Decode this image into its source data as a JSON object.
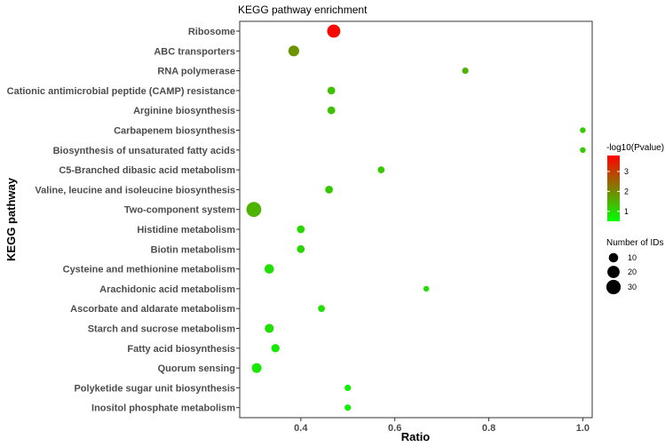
{
  "chart_data": {
    "type": "scatter",
    "title": "KEGG pathway enrichment",
    "xlabel": "Ratio",
    "ylabel": "KEGG pathway",
    "xlim": [
      0.27,
      1.02
    ],
    "xticks": [
      "0.4",
      "0.6",
      "0.8",
      "1.0"
    ],
    "xtick_values": [
      0.4,
      0.6,
      0.8,
      1.0
    ],
    "grid": false,
    "color_scale": {
      "low": "#00ff00",
      "high": "#ff0000",
      "min": 0.5,
      "max": 3.8
    },
    "legend": {
      "color_title": "-log10(Pvalue)",
      "color_ticks": [
        "1",
        "2",
        "3"
      ],
      "color_tick_values": [
        1,
        2,
        3
      ],
      "size_title": "Number of IDs",
      "size_ticks": [
        "10",
        "20",
        "30"
      ],
      "size_tick_values": [
        10,
        20,
        30
      ],
      "placement": "right"
    },
    "points": [
      {
        "pathway": "Ribosome",
        "ratio": 0.47,
        "count": 24,
        "neglog10p": 3.7
      },
      {
        "pathway": "ABC transporters",
        "ratio": 0.385,
        "count": 15,
        "neglog10p": 1.9
      },
      {
        "pathway": "RNA polymerase",
        "ratio": 0.75,
        "count": 3,
        "neglog10p": 1.5
      },
      {
        "pathway": "Cationic antimicrobial peptide (CAMP) resistance",
        "ratio": 0.465,
        "count": 6,
        "neglog10p": 1.3
      },
      {
        "pathway": "Arginine biosynthesis",
        "ratio": 0.465,
        "count": 6,
        "neglog10p": 1.3
      },
      {
        "pathway": "Carbapenem biosynthesis",
        "ratio": 1.0,
        "count": 2,
        "neglog10p": 1.2
      },
      {
        "pathway": "Biosynthesis of unsaturated fatty acids",
        "ratio": 1.0,
        "count": 2,
        "neglog10p": 1.2
      },
      {
        "pathway": "C5-Branched dibasic acid metabolism",
        "ratio": 0.571,
        "count": 4,
        "neglog10p": 1.2
      },
      {
        "pathway": "Valine, leucine and isoleucine biosynthesis",
        "ratio": 0.46,
        "count": 6,
        "neglog10p": 1.2
      },
      {
        "pathway": "Two-component system",
        "ratio": 0.3,
        "count": 33,
        "neglog10p": 1.5
      },
      {
        "pathway": "Histidine metabolism",
        "ratio": 0.4,
        "count": 6,
        "neglog10p": 1.0
      },
      {
        "pathway": "Biotin metabolism",
        "ratio": 0.4,
        "count": 6,
        "neglog10p": 1.0
      },
      {
        "pathway": "Cysteine and methionine metabolism",
        "ratio": 0.333,
        "count": 10,
        "neglog10p": 0.9
      },
      {
        "pathway": "Arachidonic acid metabolism",
        "ratio": 0.667,
        "count": 2,
        "neglog10p": 0.9
      },
      {
        "pathway": "Ascorbate and aldarate metabolism",
        "ratio": 0.444,
        "count": 4,
        "neglog10p": 0.9
      },
      {
        "pathway": "Starch and sucrose metabolism",
        "ratio": 0.333,
        "count": 9,
        "neglog10p": 0.9
      },
      {
        "pathway": "Fatty acid biosynthesis",
        "ratio": 0.346,
        "count": 7,
        "neglog10p": 0.8
      },
      {
        "pathway": "Quorum sensing",
        "ratio": 0.306,
        "count": 11,
        "neglog10p": 0.8
      },
      {
        "pathway": "Polyketide sugar unit biosynthesis",
        "ratio": 0.5,
        "count": 3,
        "neglog10p": 0.7
      },
      {
        "pathway": "Inositol phosphate metabolism",
        "ratio": 0.5,
        "count": 3,
        "neglog10p": 0.7
      }
    ]
  }
}
